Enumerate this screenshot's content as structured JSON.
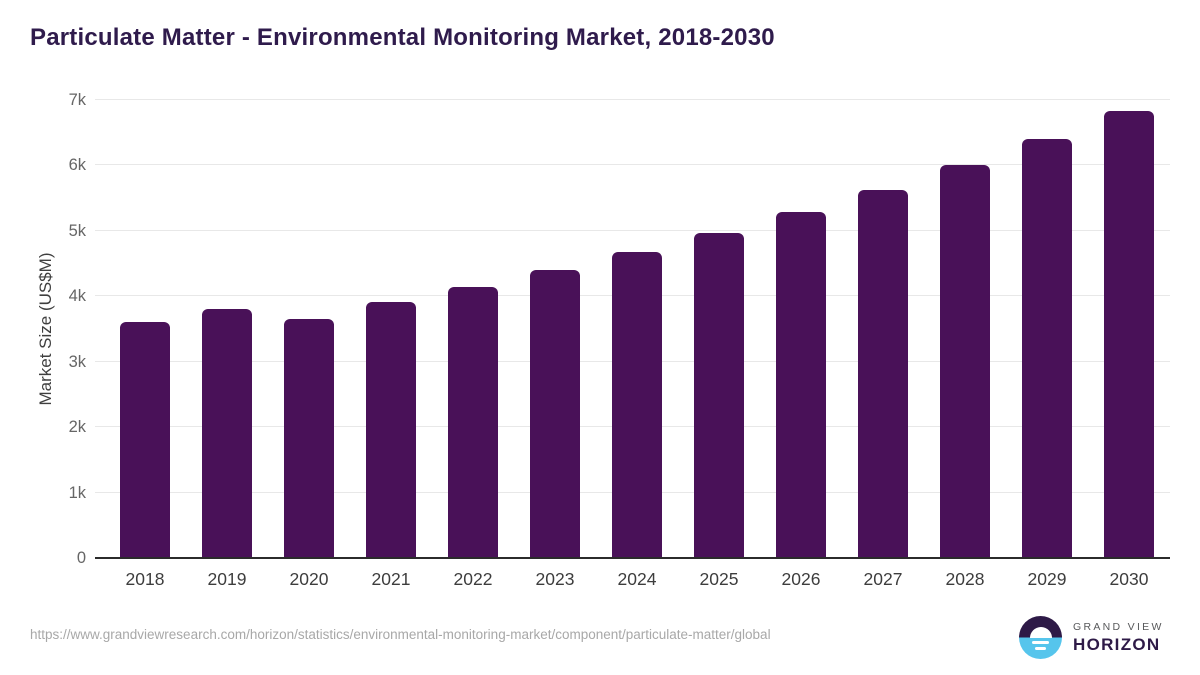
{
  "title": "Particulate Matter - Environmental Monitoring Market, 2018-2030",
  "chart_data": {
    "type": "bar",
    "categories": [
      "2018",
      "2019",
      "2020",
      "2021",
      "2022",
      "2023",
      "2024",
      "2025",
      "2026",
      "2027",
      "2028",
      "2029",
      "2030"
    ],
    "values": [
      3600,
      3800,
      3650,
      3920,
      4140,
      4400,
      4670,
      4970,
      5290,
      5620,
      6000,
      6400,
      6830
    ],
    "title": "Particulate Matter - Environmental Monitoring Market, 2018-2030",
    "xlabel": "",
    "ylabel": "Market Size (US$M)",
    "ylim": [
      0,
      7000
    ],
    "ytick_labels": [
      "0",
      "1k",
      "2k",
      "3k",
      "4k",
      "5k",
      "6k",
      "7k"
    ],
    "grid": true,
    "legend": false,
    "bar_color": "#491158"
  },
  "footer": {
    "source_url": "https://www.grandviewresearch.com/horizon/statistics/environmental-monitoring-market/component/particulate-matter/global",
    "logo": {
      "brand_top": "GRAND VIEW",
      "brand_bottom": "HORIZON"
    }
  },
  "colors": {
    "title": "#2f1b4c",
    "bar": "#491158",
    "gridline": "#e8e8e8",
    "axis_line": "#2b2b2b",
    "y_tick": "#666666",
    "x_tick": "#3d3d3d",
    "url_text": "#a8a8a8",
    "logo_blue": "#56c5ec",
    "logo_purple": "#2e1a47",
    "logo_gray": "#58595b",
    "background": "#ffffff"
  }
}
